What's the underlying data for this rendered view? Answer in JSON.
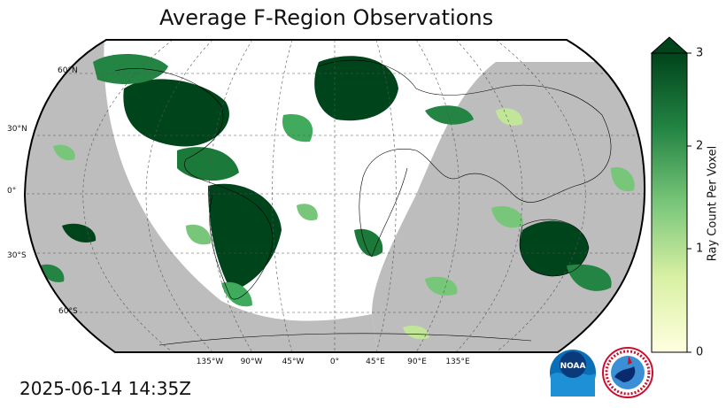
{
  "title": "Average F-Region Observations",
  "timestamp": "2025-06-14 14:35Z",
  "latitude_labels": [
    "60°N",
    "30°N",
    "0°",
    "30°S",
    "60°S"
  ],
  "longitude_labels": [
    "135°W",
    "90°W",
    "45°W",
    "0°",
    "45°E",
    "90°E",
    "135°E"
  ],
  "colorbar": {
    "label": "Ray Count Per Voxel",
    "ticks": [
      "0",
      "1",
      "2",
      "3"
    ],
    "min": 0,
    "max": 3,
    "extend": "max",
    "colors": [
      "#ffffe0",
      "#d9f0a3",
      "#78c679",
      "#238443",
      "#00441b"
    ]
  },
  "map": {
    "projection": "Robinson",
    "night_shade_color": "#bdbdbd",
    "gridlines": "dashed"
  },
  "logos": {
    "noaa": {
      "text": "NOAA"
    },
    "nws": {
      "text": "NATIONAL WEATHER SERVICE"
    }
  }
}
